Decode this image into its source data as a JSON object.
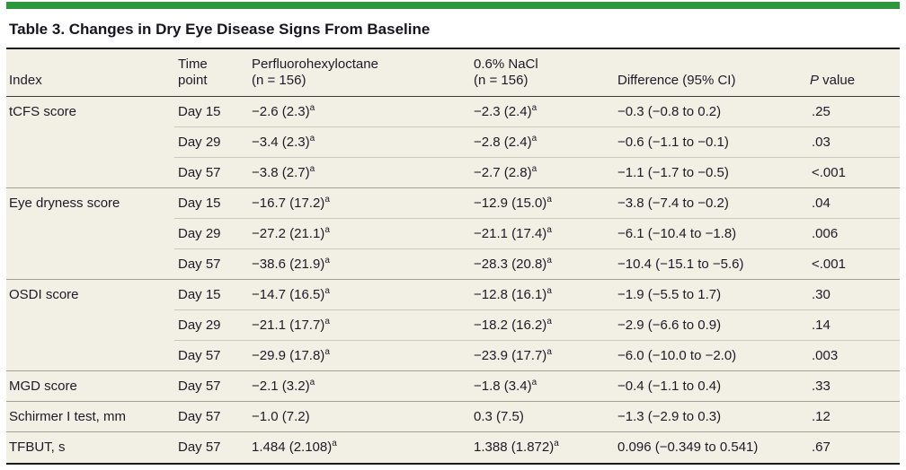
{
  "accent_color": "#2d9740",
  "title": "Table 3. Changes in Dry Eye Disease Signs From Baseline",
  "header": {
    "index": "Index",
    "time": [
      "Time",
      "point"
    ],
    "drug": [
      "Perfluorohexyloctane",
      "(n = 156)"
    ],
    "saline": [
      "0.6% NaCl",
      "(n = 156)"
    ],
    "difference": "Difference (95% CI)",
    "p_value": {
      "italic": "P",
      "rest": " value"
    }
  },
  "footnote_marker": "a",
  "rows": [
    {
      "index": "tCFS score",
      "time": "Day 15",
      "drug": "−2.6 (2.3)",
      "drug_sup": "a",
      "saline": "−2.3 (2.4)",
      "saline_sup": "a",
      "diff": "−0.3 (−0.8 to 0.2)",
      "p": ".25"
    },
    {
      "index": "",
      "time": "Day 29",
      "drug": "−3.4 (2.3)",
      "drug_sup": "a",
      "saline": "−2.8 (2.4)",
      "saline_sup": "a",
      "diff": "−0.6 (−1.1 to −0.1)",
      "p": ".03"
    },
    {
      "index": "",
      "time": "Day 57",
      "drug": "−3.8 (2.7)",
      "drug_sup": "a",
      "saline": "−2.7 (2.8)",
      "saline_sup": "a",
      "diff": "−1.1 (−1.7 to −0.5)",
      "p": "<.001"
    },
    {
      "index": "Eye dryness score",
      "time": "Day 15",
      "drug": "−16.7 (17.2)",
      "drug_sup": "a",
      "saline": "−12.9 (15.0)",
      "saline_sup": "a",
      "diff": "−3.8 (−7.4 to −0.2)",
      "p": ".04"
    },
    {
      "index": "",
      "time": "Day 29",
      "drug": "−27.2 (21.1)",
      "drug_sup": "a",
      "saline": "−21.1 (17.4)",
      "saline_sup": "a",
      "diff": "−6.1 (−10.4 to −1.8)",
      "p": ".006"
    },
    {
      "index": "",
      "time": "Day 57",
      "drug": "−38.6 (21.9)",
      "drug_sup": "a",
      "saline": "−28.3 (20.8)",
      "saline_sup": "a",
      "diff": "−10.4 (−15.1 to −5.6)",
      "p": "<.001"
    },
    {
      "index": "OSDI score",
      "time": "Day 15",
      "drug": "−14.7 (16.5)",
      "drug_sup": "a",
      "saline": "−12.8 (16.1)",
      "saline_sup": "a",
      "diff": "−1.9 (−5.5 to 1.7)",
      "p": ".30"
    },
    {
      "index": "",
      "time": "Day 29",
      "drug": "−21.1 (17.7)",
      "drug_sup": "a",
      "saline": "−18.2 (16.2)",
      "saline_sup": "a",
      "diff": "−2.9 (−6.6 to 0.9)",
      "p": ".14"
    },
    {
      "index": "",
      "time": "Day 57",
      "drug": "−29.9 (17.8)",
      "drug_sup": "a",
      "saline": "−23.9 (17.7)",
      "saline_sup": "a",
      "diff": "−6.0 (−10.0 to −2.0)",
      "p": ".003"
    },
    {
      "index": "MGD score",
      "time": "Day 57",
      "drug": "−2.1 (3.2)",
      "drug_sup": "a",
      "saline": "−1.8 (3.4)",
      "saline_sup": "a",
      "diff": "−0.4 (−1.1 to 0.4)",
      "p": ".33"
    },
    {
      "index": "Schirmer I test, mm",
      "time": "Day 57",
      "drug": "−1.0 (7.2)",
      "drug_sup": "",
      "saline": "0.3 (7.5)",
      "saline_sup": "",
      "diff": "−1.3 (−2.9 to 0.3)",
      "p": ".12"
    },
    {
      "index": "TFBUT, s",
      "time": "Day 57",
      "drug": "1.484 (2.108)",
      "drug_sup": "a",
      "saline": "1.388 (1.872)",
      "saline_sup": "a",
      "diff": "0.096 (−0.349 to 0.541)",
      "p": ".67"
    }
  ]
}
